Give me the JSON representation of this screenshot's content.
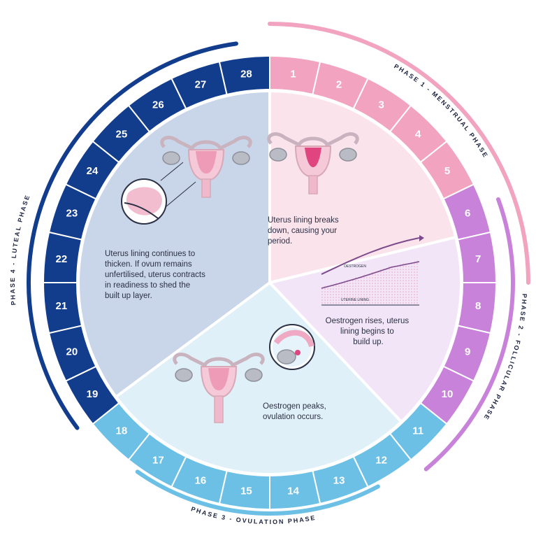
{
  "colors": {
    "menstrual": "#f2a3bf",
    "follicular": "#c882d9",
    "ovulation": "#6cc0e5",
    "luteal": "#123c8c",
    "menstrual_bg": "#fbe3ec",
    "follicular_bg": "#f2e5f7",
    "ovulation_bg": "#dff0f8",
    "luteal_bg": "#c9d5e8",
    "uterus_pink": "#ee9bb8",
    "uterus_outline": "#d7a9b6"
  },
  "cycle": {
    "days": [
      "1",
      "2",
      "3",
      "4",
      "5",
      "6",
      "7",
      "8",
      "9",
      "10",
      "11",
      "12",
      "13",
      "14",
      "15",
      "16",
      "17",
      "18",
      "19",
      "20",
      "21",
      "22",
      "23",
      "24",
      "25",
      "26",
      "27",
      "28"
    ]
  },
  "phases": [
    {
      "key": "menstrual",
      "label": "PHASE 1 - MENSTRUAL PHASE",
      "days": "1-5"
    },
    {
      "key": "follicular",
      "label": "PHASE 2 - FOLLICULAR PHASE",
      "days": "6-10"
    },
    {
      "key": "ovulation",
      "label": "PHASE 3 - OVULATION PHASE",
      "days": "11-18"
    },
    {
      "key": "luteal",
      "label": "PHASE 4 - LUTEAL PHASE",
      "days": "19-28"
    }
  ],
  "panels": {
    "menstrual": [
      "Uterus lining breaks",
      "down, causing your",
      "period."
    ],
    "follicular": [
      "Oestrogen rises, uterus",
      "lining begins to",
      "build up."
    ],
    "ovulation": [
      "Oestrogen peaks,",
      "ovulation occurs."
    ],
    "luteal": [
      "Uterus lining continues to",
      "thicken. If ovum remains",
      "unfertilised, uterus contracts",
      "in readiness to shed the",
      "built up layer."
    ]
  },
  "graph": {
    "top_label": "OESTROGEN",
    "bottom_label": "UTERINE LINING"
  },
  "icons": [
    "uterus-icon",
    "ovary-closeup-icon",
    "ovulation-closeup-icon",
    "oestrogen-graph-icon"
  ]
}
